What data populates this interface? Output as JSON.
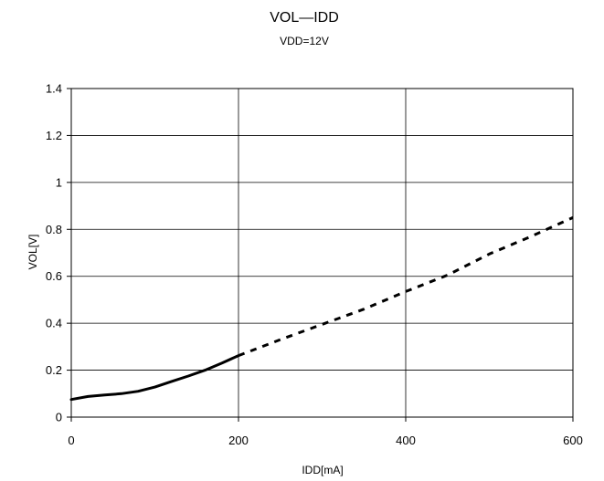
{
  "chart_data": {
    "type": "line",
    "title": "VOL—IDD",
    "subtitle": "VDD=12V",
    "xlabel": "IDD[mA]",
    "ylabel": "VOL[V]",
    "xlim": [
      0,
      600
    ],
    "ylim": [
      0,
      1.4
    ],
    "x_ticks": [
      "0",
      "200",
      "400",
      "600"
    ],
    "y_ticks": [
      "0",
      "0.2",
      "0.4",
      "0.6",
      "0.8",
      "1",
      "1.2",
      "1.4"
    ],
    "grid": true,
    "series": [
      {
        "style": "solid",
        "color": "#000000",
        "x": [
          0,
          20,
          40,
          60,
          80,
          100,
          120,
          140,
          160,
          180,
          200
        ],
        "y": [
          0.075,
          0.088,
          0.094,
          0.1,
          0.11,
          0.128,
          0.152,
          0.175,
          0.2,
          0.23,
          0.262
        ]
      },
      {
        "style": "dashed",
        "color": "#000000",
        "x": [
          200,
          250,
          300,
          350,
          400,
          450,
          500,
          550,
          600
        ],
        "y": [
          0.262,
          0.33,
          0.395,
          0.46,
          0.535,
          0.605,
          0.695,
          0.77,
          0.85
        ]
      }
    ]
  }
}
